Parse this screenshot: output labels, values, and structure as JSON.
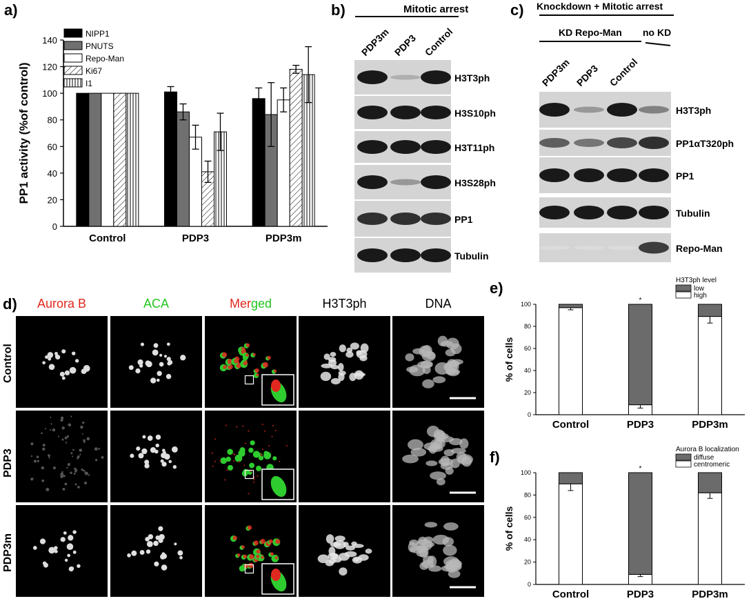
{
  "panel_labels": {
    "a": "a)",
    "b": "b)",
    "c": "c)",
    "d": "d)",
    "e": "e)",
    "f": "f)"
  },
  "panel_b": {
    "header": "Mitotic arrest",
    "lanes": [
      "PDP3m",
      "PDP3",
      "Control"
    ],
    "rows": [
      "H3T3ph",
      "H3S10ph",
      "H3T11ph",
      "H3S28ph",
      "PP1",
      "Tubulin"
    ],
    "intensity": [
      [
        1.0,
        0.35,
        1.0
      ],
      [
        1.0,
        1.0,
        1.0
      ],
      [
        1.0,
        1.0,
        1.0
      ],
      [
        1.0,
        0.45,
        1.0
      ],
      [
        0.9,
        0.9,
        0.9
      ],
      [
        1.0,
        1.0,
        1.0
      ]
    ]
  },
  "panel_c": {
    "header": "Knockdown + Mitotic arrest",
    "group1": "KD Repo-Man",
    "group2": "no KD",
    "lanes": [
      "PDP3m",
      "PDP3",
      "Control"
    ],
    "rows": [
      "H3T3ph",
      "PP1αT320ph",
      "PP1",
      "Tubulin",
      "Repo-Man"
    ],
    "intensity": [
      [
        1.0,
        0.45,
        1.0,
        0.55
      ],
      [
        0.7,
        0.6,
        0.8,
        0.9
      ],
      [
        1.0,
        1.0,
        1.0,
        1.0
      ],
      [
        1.0,
        1.0,
        1.0,
        1.0
      ],
      [
        0.1,
        0.1,
        0.1,
        0.85
      ]
    ]
  },
  "panel_d": {
    "columns": [
      {
        "label": "Aurora B",
        "color": "#e0281e"
      },
      {
        "label": "ACA",
        "color": "#22c61e"
      },
      {
        "label": "Merged",
        "color": "#e0281e"
      },
      {
        "label": "H3T3ph",
        "color": "#000000"
      },
      {
        "label": "DNA",
        "color": "#000000"
      }
    ],
    "merged_split": {
      "first": "Mer",
      "second": "ged"
    },
    "rows": [
      "Control",
      "PDP3",
      "PDP3m"
    ]
  },
  "chart_data": [
    {
      "id": "a",
      "type": "bar",
      "ylabel": "PP1 activity (%of control)",
      "xlabel": "",
      "ylim": [
        0,
        140
      ],
      "yticks": [
        0,
        20,
        40,
        60,
        80,
        100,
        120,
        140
      ],
      "categories": [
        "Control",
        "PDP3",
        "PDP3m"
      ],
      "legend_position": "top-left",
      "series": [
        {
          "name": "NIPP1",
          "values": [
            100,
            101,
            96
          ],
          "errors": [
            0,
            4,
            8
          ],
          "fill": "#000000"
        },
        {
          "name": "PNUTS",
          "values": [
            100,
            86,
            84
          ],
          "errors": [
            0,
            6,
            24
          ],
          "fill": "#707070"
        },
        {
          "name": "Repo-Man",
          "values": [
            100,
            67,
            95
          ],
          "errors": [
            0,
            9,
            9
          ],
          "fill": "#ffffff"
        },
        {
          "name": "Ki67",
          "values": [
            100,
            41,
            118
          ],
          "errors": [
            0,
            8,
            3
          ],
          "fill": "diag"
        },
        {
          "name": "I1",
          "values": [
            100,
            71,
            114
          ],
          "errors": [
            0,
            14,
            21
          ],
          "fill": "vert"
        }
      ]
    },
    {
      "id": "e",
      "type": "bar",
      "stacked": true,
      "ylabel": "% of cells",
      "xlabel": "",
      "ylim": [
        0,
        100
      ],
      "yticks": [
        0,
        20,
        40,
        60,
        80,
        100
      ],
      "categories": [
        "Control",
        "PDP3",
        "PDP3m"
      ],
      "legend_title": "H3T3ph level",
      "legend_position": "top-right",
      "significance": [
        "",
        "*",
        ""
      ],
      "series": [
        {
          "name": "high",
          "values": [
            97,
            9,
            89
          ],
          "errors": [
            2,
            3,
            6
          ],
          "fill": "#ffffff"
        },
        {
          "name": "low",
          "values": [
            3,
            91,
            11
          ],
          "errors": [
            0,
            0,
            0
          ],
          "fill": "#6b6b6b"
        }
      ]
    },
    {
      "id": "f",
      "type": "bar",
      "stacked": true,
      "ylabel": "% of cells",
      "xlabel": "",
      "ylim": [
        0,
        100
      ],
      "yticks": [
        0,
        20,
        40,
        60,
        80,
        100
      ],
      "categories": [
        "Control",
        "PDP3",
        "PDP3m"
      ],
      "legend_title": "Aurora B localization",
      "legend_position": "top-right",
      "significance": [
        "",
        "*",
        ""
      ],
      "series": [
        {
          "name": "centromeric",
          "values": [
            90,
            9,
            82
          ],
          "errors": [
            6,
            2,
            5
          ],
          "fill": "#ffffff"
        },
        {
          "name": "diffuse",
          "values": [
            10,
            91,
            18
          ],
          "errors": [
            0,
            0,
            0
          ],
          "fill": "#6b6b6b"
        }
      ]
    }
  ]
}
